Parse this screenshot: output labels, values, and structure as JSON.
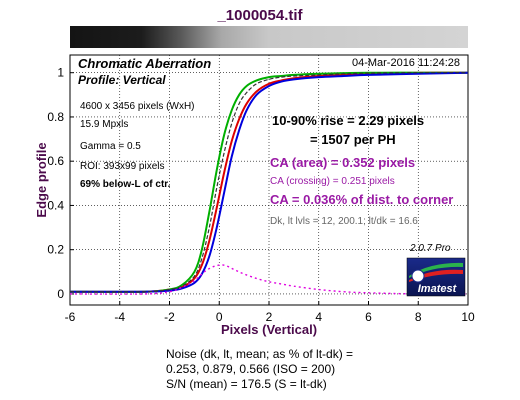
{
  "title": "_1000054.tif",
  "panel": {
    "title": "Chromatic Aberration",
    "subtitle": "Profile: Vertical",
    "date": "04-Mar-2016 11:24:28"
  },
  "info_lines": [
    "4600 x 3456 pixels (WxH)",
    "15.9 Mpxls",
    "Gamma = 0.5",
    "ROI: 393x99 pixels",
    "69% below-L of ctr."
  ],
  "rise_lines": [
    "10-90% rise = 2.29 pixels",
    "= 1507 per PH"
  ],
  "ca": {
    "area": "CA (area) = 0.352 pixels",
    "crossing": "CA (crossing) = 0.251 pixels",
    "corner": "CA = 0.036% of dist. to corner"
  },
  "dk_line": "Dk, lt lvls = 12, 200.1;  lt/dk = 16.6",
  "version": "2.0.7  Pro",
  "logo_text": "Imatest",
  "footer_lines": [
    "Noise (dk, lt, mean; as % of lt-dk) =",
    "0.253,  0.879,  0.566  (ISO = 200)",
    "S/N (mean) = 176.5  (S = lt-dk)"
  ],
  "colors": {
    "red": "#dd0000",
    "green": "#00b000",
    "blue": "#0000dd",
    "magenta": "#e000e0",
    "title": "#4b0a4b"
  },
  "chart_data": {
    "type": "line",
    "xlabel": "Pixels (Vertical)",
    "ylabel": "Edge profile",
    "xlim": [
      -6,
      10
    ],
    "ylim": [
      -0.05,
      1.08
    ],
    "xticks": [
      -6,
      -4,
      -2,
      0,
      2,
      4,
      6,
      8,
      10
    ],
    "yticks": [
      0,
      0.2,
      0.4,
      0.6,
      0.8,
      1
    ],
    "ytick_labels": [
      "0",
      "0.2",
      "0.4",
      "0.6",
      "0.8",
      "1"
    ],
    "series": [
      {
        "name": "Red",
        "color": "#dd0000",
        "dash": "",
        "x": [
          -6,
          -3,
          -2,
          -1.5,
          -1,
          -0.7,
          -0.4,
          -0.1,
          0.2,
          0.5,
          0.8,
          1.1,
          1.5,
          2,
          2.5,
          3,
          4,
          5,
          6,
          8,
          10
        ],
        "y": [
          0.01,
          0.01,
          0.02,
          0.03,
          0.07,
          0.13,
          0.24,
          0.39,
          0.55,
          0.69,
          0.79,
          0.86,
          0.915,
          0.95,
          0.965,
          0.975,
          0.985,
          0.99,
          0.995,
          1.0,
          1.0
        ]
      },
      {
        "name": "Green",
        "color": "#00b000",
        "dash": "",
        "x": [
          -6,
          -3,
          -2,
          -1.5,
          -1,
          -0.7,
          -0.4,
          -0.1,
          0.2,
          0.5,
          0.8,
          1.1,
          1.5,
          2,
          2.5,
          3,
          4,
          5,
          6,
          8,
          10
        ],
        "y": [
          0.01,
          0.01,
          0.02,
          0.04,
          0.1,
          0.2,
          0.37,
          0.56,
          0.72,
          0.83,
          0.9,
          0.94,
          0.965,
          0.98,
          0.985,
          0.99,
          0.995,
          0.998,
          1.0,
          1.0,
          1.0
        ]
      },
      {
        "name": "Blue",
        "color": "#0000dd",
        "dash": "",
        "x": [
          -6,
          -3,
          -2,
          -1.5,
          -1,
          -0.7,
          -0.4,
          -0.1,
          0.2,
          0.5,
          0.8,
          1.1,
          1.5,
          2,
          2.5,
          3,
          4,
          5,
          6,
          8,
          10
        ],
        "y": [
          0.01,
          0.01,
          0.015,
          0.025,
          0.05,
          0.09,
          0.17,
          0.3,
          0.46,
          0.62,
          0.74,
          0.83,
          0.9,
          0.94,
          0.96,
          0.97,
          0.98,
          0.985,
          0.99,
          0.995,
          1.0
        ]
      },
      {
        "name": "Luminance",
        "color": "#333333",
        "dash": "4,2",
        "x": [
          -6,
          -3,
          -2,
          -1.5,
          -1,
          -0.7,
          -0.4,
          -0.1,
          0.2,
          0.5,
          0.8,
          1.1,
          1.5,
          2,
          2.5,
          3,
          4,
          5,
          6,
          8,
          10
        ],
        "y": [
          0.01,
          0.01,
          0.02,
          0.035,
          0.08,
          0.16,
          0.3,
          0.48,
          0.64,
          0.77,
          0.86,
          0.91,
          0.95,
          0.97,
          0.98,
          0.985,
          0.99,
          0.995,
          0.998,
          1.0,
          1.0
        ]
      },
      {
        "name": "CA difference",
        "color": "#e000e0",
        "dash": "2,3",
        "x": [
          -6,
          -3,
          -2,
          -1.5,
          -1,
          -0.6,
          -0.2,
          0.2,
          0.6,
          1,
          1.5,
          2,
          2.5,
          3,
          4,
          5,
          6,
          8,
          10
        ],
        "y": [
          0.0,
          0.0,
          0.01,
          0.03,
          0.06,
          0.1,
          0.125,
          0.13,
          0.11,
          0.09,
          0.07,
          0.055,
          0.045,
          0.035,
          0.02,
          0.01,
          0.005,
          0.0,
          0.0
        ]
      }
    ]
  }
}
